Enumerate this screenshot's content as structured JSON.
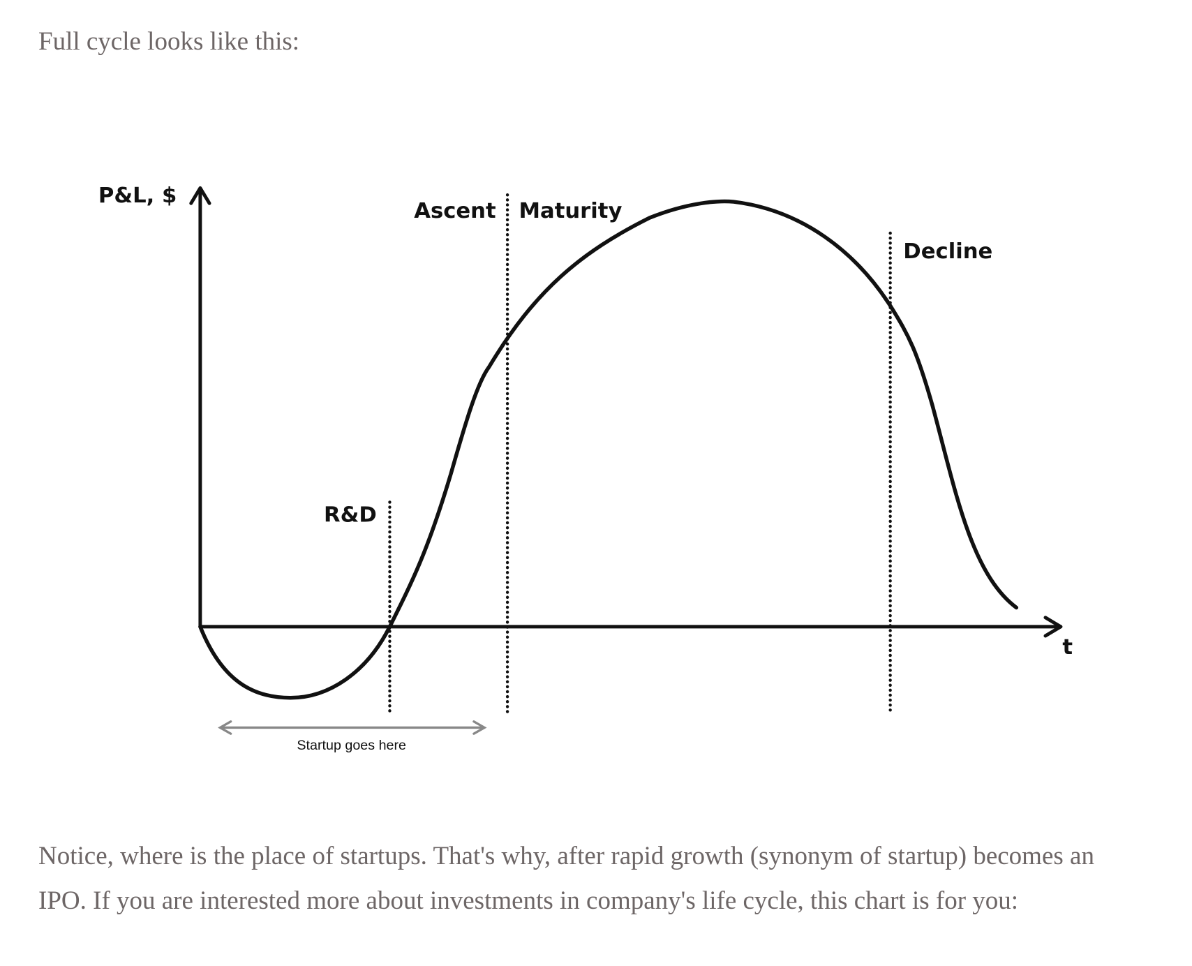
{
  "intro": "Full cycle looks like this:",
  "diagram": {
    "y_axis_label": "P&L, $",
    "x_axis_label": "t",
    "phases": [
      "R&D",
      "Ascent",
      "Maturity",
      "Decline"
    ],
    "annotation": "Startup goes here"
  },
  "paragraph": "Notice, where is the place of startups. That's why, after rapid growth (synonym of startup) becomes an IPO. If you are interested more about investments in company's life cycle, this chart is for you:"
}
